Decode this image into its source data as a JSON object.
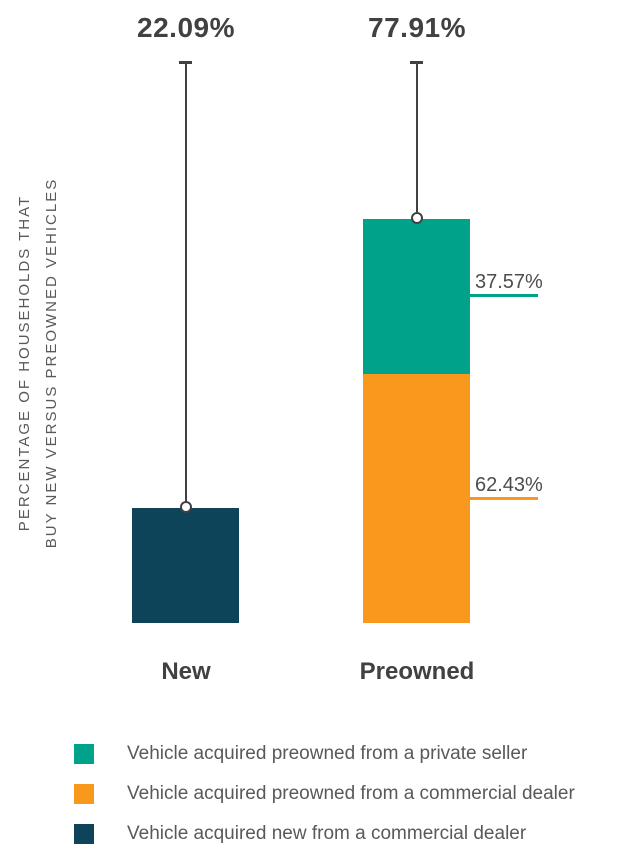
{
  "axis": {
    "y_label_line1": "PERCENTAGE OF HOUSEHOLDS THAT",
    "y_label_line2": "BUY NEW VERSUS PREOWNED VEHICLES"
  },
  "totals": {
    "new_label": "22.09%",
    "preowned_label": "77.91%"
  },
  "segments": {
    "private_seller_label": "37.57%",
    "commercial_dealer_label": "62.43%"
  },
  "categories": {
    "new": "New",
    "preowned": "Preowned"
  },
  "legend": {
    "items": [
      {
        "label": "Vehicle acquired preowned from a private seller",
        "color": "#00A28A"
      },
      {
        "label": "Vehicle acquired preowned from a commercial dealer",
        "color": "#F8981D"
      },
      {
        "label": "Vehicle acquired new from a commercial dealer",
        "color": "#0E4459"
      }
    ]
  },
  "colors": {
    "teal": "#00A28A",
    "orange": "#F8981D",
    "navy": "#0E4459",
    "dark_text": "#414042",
    "gray_text": "#58595B",
    "value_text": "#4D4D4F"
  },
  "chart_data": {
    "type": "bar",
    "subtype": "stacked",
    "title": "",
    "ylabel": "PERCENTAGE OF HOUSEHOLDS THAT BUY NEW VERSUS PREOWNED VEHICLES",
    "xlabel": "",
    "categories": [
      "New",
      "Preowned"
    ],
    "category_totals_percent": [
      22.09,
      77.91
    ],
    "series": [
      {
        "name": "Vehicle acquired preowned from a private seller",
        "color": "#00A28A",
        "values_percent_of_category": [
          0,
          37.57
        ]
      },
      {
        "name": "Vehicle acquired preowned from a commercial dealer",
        "color": "#F8981D",
        "values_percent_of_category": [
          0,
          62.43
        ]
      },
      {
        "name": "Vehicle acquired new from a commercial dealer",
        "color": "#0E4459",
        "values_percent_of_category": [
          100,
          0
        ]
      }
    ],
    "units": "%",
    "grid": false,
    "legend_position": "bottom",
    "annotations": [
      "22.09%",
      "77.91%",
      "37.57%",
      "62.43%"
    ]
  }
}
